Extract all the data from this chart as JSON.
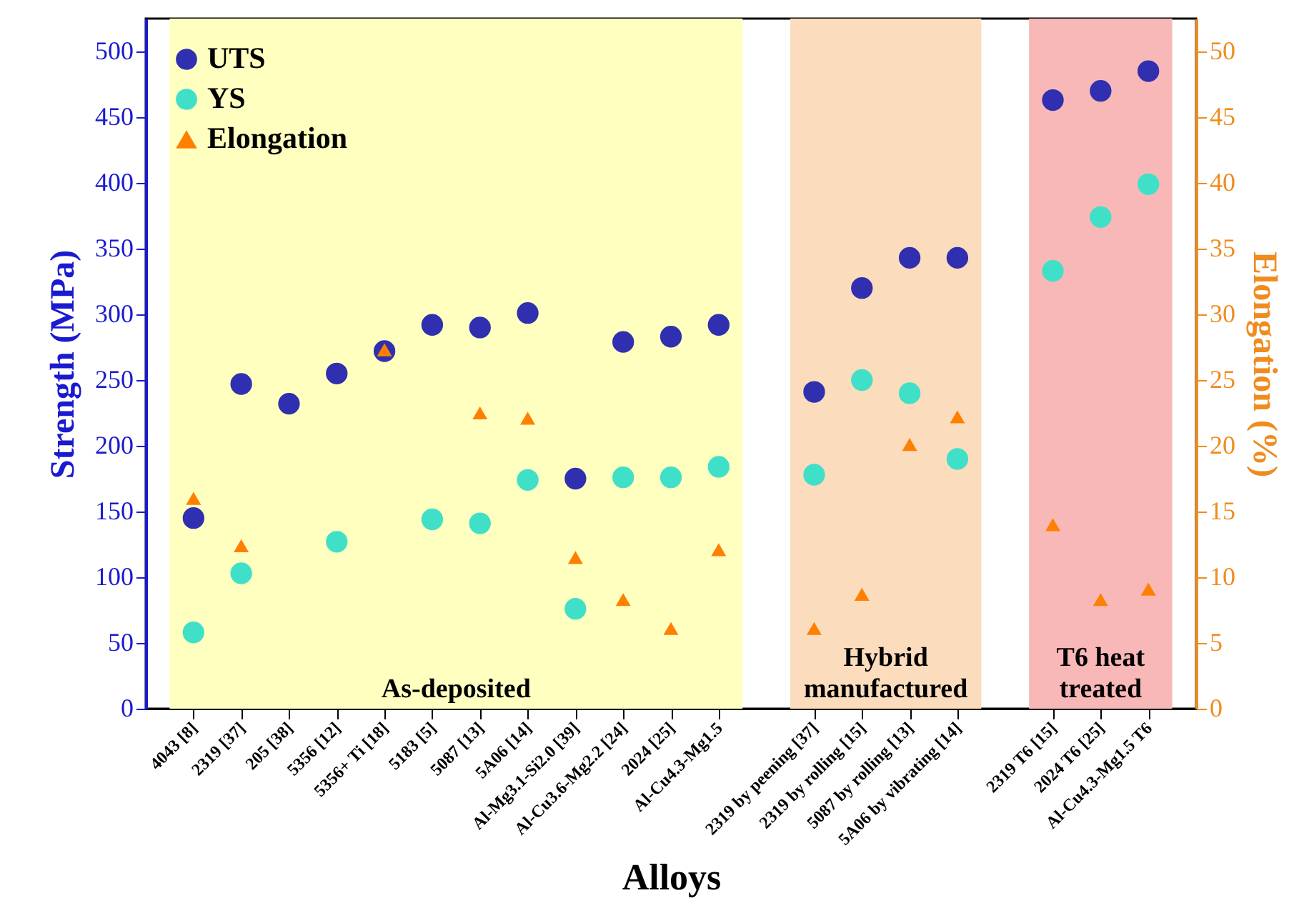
{
  "chart_data": {
    "type": "scatter",
    "xlabel": "Alloys",
    "ylabel": "Strength (MPa)",
    "y2label": "Elongation (%)",
    "categories": [
      "4043 [8]",
      "2319 [37]",
      "205 [38]",
      "5356 [12]",
      "5356+ Ti [18]",
      "5183 [5]",
      "5087 [13]",
      "5A06 [14]",
      "Al-Mg3.1-Si2.0 [39]",
      "Al-Cu3.6-Mg2.2 [24]",
      "2024 [25]",
      "Al-Cu4.3-Mg1.5",
      null,
      "2319 by peening [37]",
      "2319 by rolling [15]",
      "5087 by rolling [13]",
      "5A06 by vibrating [14]",
      null,
      "2319 T6 [15]",
      "2024 T6  [25]",
      "Al-Cu4.3-Mg1.5 T6"
    ],
    "ylim": [
      0,
      525
    ],
    "yticks": [
      0,
      50,
      100,
      150,
      200,
      250,
      300,
      350,
      400,
      450,
      500
    ],
    "y2lim": [
      0,
      52.5
    ],
    "y2ticks": [
      0,
      5,
      10,
      15,
      20,
      25,
      30,
      35,
      40,
      45,
      50
    ],
    "legend": "top left",
    "series": [
      {
        "name": "UTS",
        "color": "#2f2fb0",
        "marker": "circle",
        "values": [
          145,
          247,
          232,
          255,
          272,
          292,
          290,
          301,
          175,
          279,
          283,
          292,
          null,
          241,
          320,
          343,
          343,
          null,
          463,
          470,
          485
        ]
      },
      {
        "name": "YS",
        "color": "#40e0c8",
        "marker": "circle",
        "values": [
          58,
          103,
          null,
          127,
          null,
          144,
          141,
          174,
          76,
          176,
          176,
          184,
          null,
          178,
          250,
          240,
          190,
          null,
          333,
          374,
          399
        ]
      },
      {
        "name": "Elongation",
        "color": "#ff8000",
        "marker": "triangle",
        "axis": "y2",
        "values": [
          16,
          12.4,
          null,
          null,
          27.3,
          null,
          22.5,
          22.1,
          11.5,
          8.3,
          6.1,
          12.1,
          null,
          6.1,
          8.7,
          20.1,
          22.2,
          null,
          14,
          8.3,
          9.1
        ]
      }
    ],
    "bands": [
      {
        "axis": "x",
        "from": "4043 [8]",
        "to": "Al-Cu4.3-Mg1.5",
        "label": "As-deposited",
        "color": "#ffffc0"
      },
      {
        "axis": "x",
        "from": "2319 by peening [37]",
        "to": "5A06 by vibrating [14]",
        "label": "Hybrid manufactured",
        "color": "#fbdcbc"
      },
      {
        "axis": "x",
        "from": "2319 T6 [15]",
        "to": "Al-Cu4.3-Mg1.5 T6",
        "label": "T6 heat treated",
        "color": "#f9b8b8"
      }
    ]
  }
}
